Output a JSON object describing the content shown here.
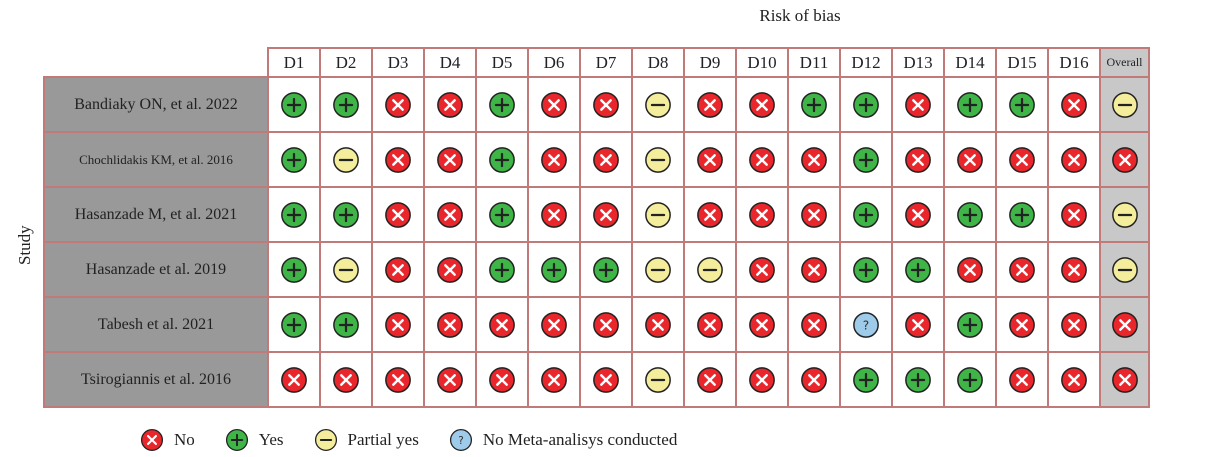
{
  "title": "Risk of bias",
  "y_axis_label": "Study",
  "columns": [
    "D1",
    "D2",
    "D3",
    "D4",
    "D5",
    "D6",
    "D7",
    "D8",
    "D9",
    "D10",
    "D11",
    "D12",
    "D13",
    "D14",
    "D15",
    "D16",
    "Overall"
  ],
  "rows": [
    {
      "study": "Bandiaky ON, et al. 2022",
      "ratings": [
        "yes",
        "yes",
        "no",
        "no",
        "yes",
        "no",
        "no",
        "partial",
        "no",
        "no",
        "yes",
        "yes",
        "no",
        "yes",
        "yes",
        "no",
        "partial"
      ]
    },
    {
      "study": "Chochlidakis KM, et al. 2016",
      "ratings": [
        "yes",
        "partial",
        "no",
        "no",
        "yes",
        "no",
        "no",
        "partial",
        "no",
        "no",
        "no",
        "yes",
        "no",
        "no",
        "no",
        "no",
        "no"
      ]
    },
    {
      "study": "Hasanzade M, et al. 2021",
      "ratings": [
        "yes",
        "yes",
        "no",
        "no",
        "yes",
        "no",
        "no",
        "partial",
        "no",
        "no",
        "no",
        "yes",
        "no",
        "yes",
        "yes",
        "no",
        "partial"
      ]
    },
    {
      "study": "Hasanzade et al. 2019",
      "ratings": [
        "yes",
        "partial",
        "no",
        "no",
        "yes",
        "yes",
        "yes",
        "partial",
        "partial",
        "no",
        "no",
        "yes",
        "yes",
        "no",
        "no",
        "no",
        "partial"
      ]
    },
    {
      "study": "Tabesh et al. 2021",
      "ratings": [
        "yes",
        "yes",
        "no",
        "no",
        "no",
        "no",
        "no",
        "no",
        "no",
        "no",
        "no",
        "nometa",
        "no",
        "yes",
        "no",
        "no",
        "no"
      ]
    },
    {
      "study": "Tsirogiannis et al. 2016",
      "ratings": [
        "no",
        "no",
        "no",
        "no",
        "no",
        "no",
        "no",
        "partial",
        "no",
        "no",
        "no",
        "yes",
        "yes",
        "yes",
        "no",
        "no",
        "no"
      ]
    }
  ],
  "legend": [
    {
      "key": "no",
      "label": "No"
    },
    {
      "key": "yes",
      "label": "Yes"
    },
    {
      "key": "partial",
      "label": "Partial yes"
    },
    {
      "key": "nometa",
      "label": "No Meta-analisys conducted"
    }
  ],
  "colors": {
    "no": "#e8262b",
    "yes": "#3fb548",
    "partial": "#f4ee9c",
    "nometa": "#9fcbea",
    "study_cell": "#999999",
    "overall_cell": "#c8c8c8",
    "grid_border": "#c07a7a"
  },
  "icons": {
    "no": "x-circle-icon",
    "yes": "plus-circle-icon",
    "partial": "minus-circle-icon",
    "nometa": "question-circle-icon"
  }
}
